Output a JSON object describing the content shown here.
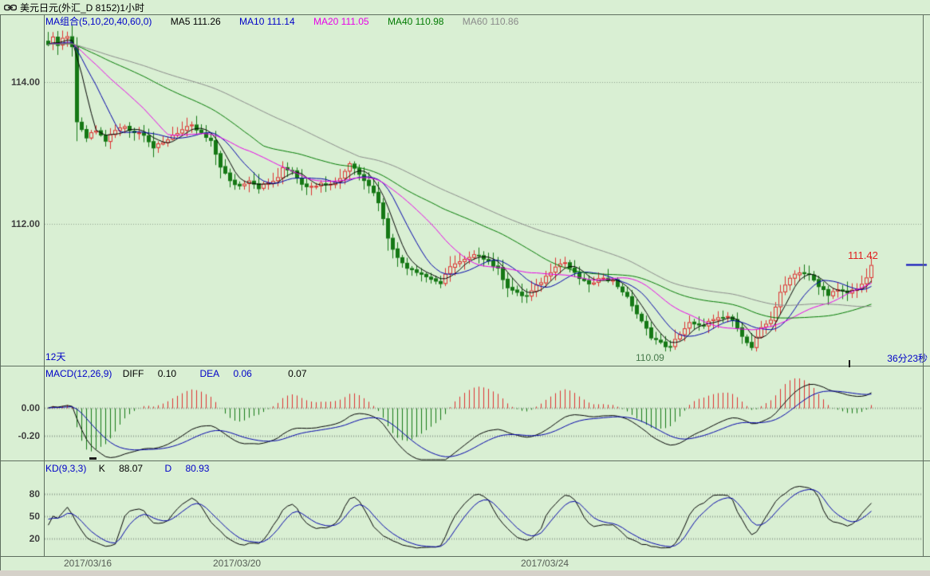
{
  "window": {
    "title": "美元日元(外汇_D 8152)1小时"
  },
  "main_panel": {
    "legend": {
      "group": "MA组合(5,10,20,40,60,0)",
      "ma5": "MA5 111.26",
      "ma10": "MA10 111.14",
      "ma20": "MA20 111.05",
      "ma40": "MA40 110.98",
      "ma60": "MA60 110.86"
    },
    "y_labels": [
      "114.00",
      "112.00"
    ],
    "last_price_label": "111.42",
    "low_price_label": "110.09",
    "countdown_left": "12天",
    "countdown_right": "36分23秒"
  },
  "macd_panel": {
    "name": "MACD(12,26,9)",
    "diff_label": "DIFF",
    "diff_value": "0.10",
    "dea_label": "DEA",
    "dea_value": "0.06",
    "macd_value": "0.07",
    "y_labels": [
      "0.00",
      "-0.20"
    ]
  },
  "kd_panel": {
    "name": "KD(9,3,3)",
    "k_label": "K",
    "k_value": "88.07",
    "d_label": "D",
    "d_value": "80.93",
    "y_labels": [
      "80",
      "50",
      "20"
    ]
  },
  "x_axis": {
    "dates": [
      "2017/03/16",
      "2017/03/20",
      "2017/03/24"
    ]
  },
  "colors": {
    "background": "#d9efd3",
    "panel_border": "#5f6f5f",
    "grid_dotted": "#8f9f8f",
    "candle_up": "#dc3030",
    "candle_down": "#157815",
    "ma5": "#000000",
    "ma10": "#0000aa",
    "ma20": "#e800e8",
    "ma40": "#007a00",
    "ma60": "#8a8a8a",
    "diff_line": "#000000",
    "dea_line": "#0000aa",
    "k_line": "#000000",
    "d_line": "#0000aa",
    "price_marker_blue": "#0000bb",
    "label_red": "#e02222",
    "label_low_green": "#45784a"
  },
  "chart_data": {
    "type": "candlestick",
    "symbol": "美元日元",
    "period": "1小时",
    "candle_count": 173,
    "y_axis_main_ticks": [
      114.0,
      112.0
    ],
    "y_range_main": [
      110.03,
      114.93
    ],
    "x_tick_labels": [
      "2017/03/16",
      "2017/03/20",
      "2017/03/24"
    ],
    "ma_periods": [
      5,
      10,
      20,
      40,
      60
    ],
    "ma_last_values": {
      "MA5": 111.26,
      "MA10": 111.14,
      "MA20": 111.05,
      "MA40": 110.98,
      "MA60": 110.86
    },
    "last_close": 111.42,
    "session_low": 110.09,
    "macd": {
      "params": [
        12,
        26,
        9
      ],
      "diff": 0.1,
      "dea": 0.06,
      "macd": 0.07,
      "y_ticks": [
        0.0,
        -0.2
      ]
    },
    "kd": {
      "params": [
        9,
        3,
        3
      ],
      "k": 88.07,
      "d": 80.93,
      "y_ticks": [
        80,
        50,
        20
      ]
    },
    "close_anchors": [
      [
        0,
        114.55
      ],
      [
        1,
        114.65
      ],
      [
        2,
        114.52
      ],
      [
        3,
        114.6
      ],
      [
        4,
        114.63
      ],
      [
        5,
        114.52
      ],
      [
        6,
        113.42
      ],
      [
        8,
        113.22
      ],
      [
        10,
        113.32
      ],
      [
        12,
        113.18
      ],
      [
        14,
        113.32
      ],
      [
        16,
        113.38
      ],
      [
        18,
        113.3
      ],
      [
        20,
        113.28
      ],
      [
        22,
        113.08
      ],
      [
        24,
        113.14
      ],
      [
        26,
        113.26
      ],
      [
        28,
        113.33
      ],
      [
        30,
        113.38
      ],
      [
        32,
        113.28
      ],
      [
        34,
        113.16
      ],
      [
        36,
        112.82
      ],
      [
        38,
        112.6
      ],
      [
        40,
        112.54
      ],
      [
        42,
        112.63
      ],
      [
        44,
        112.52
      ],
      [
        46,
        112.58
      ],
      [
        48,
        112.64
      ],
      [
        49,
        112.8
      ],
      [
        51,
        112.76
      ],
      [
        53,
        112.58
      ],
      [
        55,
        112.52
      ],
      [
        57,
        112.6
      ],
      [
        59,
        112.56
      ],
      [
        61,
        112.65
      ],
      [
        63,
        112.86
      ],
      [
        65,
        112.72
      ],
      [
        67,
        112.56
      ],
      [
        69,
        112.32
      ],
      [
        71,
        111.82
      ],
      [
        73,
        111.52
      ],
      [
        75,
        111.4
      ],
      [
        77,
        111.34
      ],
      [
        79,
        111.26
      ],
      [
        81,
        111.2
      ],
      [
        82,
        111.14
      ],
      [
        84,
        111.42
      ],
      [
        86,
        111.46
      ],
      [
        88,
        111.52
      ],
      [
        90,
        111.58
      ],
      [
        92,
        111.48
      ],
      [
        94,
        111.36
      ],
      [
        96,
        111.12
      ],
      [
        98,
        111.02
      ],
      [
        100,
        110.98
      ],
      [
        102,
        111.12
      ],
      [
        104,
        111.26
      ],
      [
        106,
        111.42
      ],
      [
        108,
        111.46
      ],
      [
        110,
        111.3
      ],
      [
        112,
        111.18
      ],
      [
        114,
        111.16
      ],
      [
        116,
        111.26
      ],
      [
        118,
        111.2
      ],
      [
        120,
        111.06
      ],
      [
        122,
        110.86
      ],
      [
        124,
        110.62
      ],
      [
        126,
        110.42
      ],
      [
        128,
        110.32
      ],
      [
        130,
        110.26
      ],
      [
        132,
        110.46
      ],
      [
        134,
        110.6
      ],
      [
        136,
        110.56
      ],
      [
        138,
        110.62
      ],
      [
        140,
        110.66
      ],
      [
        142,
        110.7
      ],
      [
        144,
        110.56
      ],
      [
        146,
        110.32
      ],
      [
        147,
        110.26
      ],
      [
        149,
        110.52
      ],
      [
        151,
        110.66
      ],
      [
        153,
        111.02
      ],
      [
        155,
        111.26
      ],
      [
        157,
        111.33
      ],
      [
        159,
        111.28
      ],
      [
        161,
        111.12
      ],
      [
        163,
        111.02
      ],
      [
        165,
        111.06
      ],
      [
        167,
        111.03
      ],
      [
        169,
        111.1
      ],
      [
        171,
        111.22
      ],
      [
        172,
        111.42
      ]
    ]
  }
}
